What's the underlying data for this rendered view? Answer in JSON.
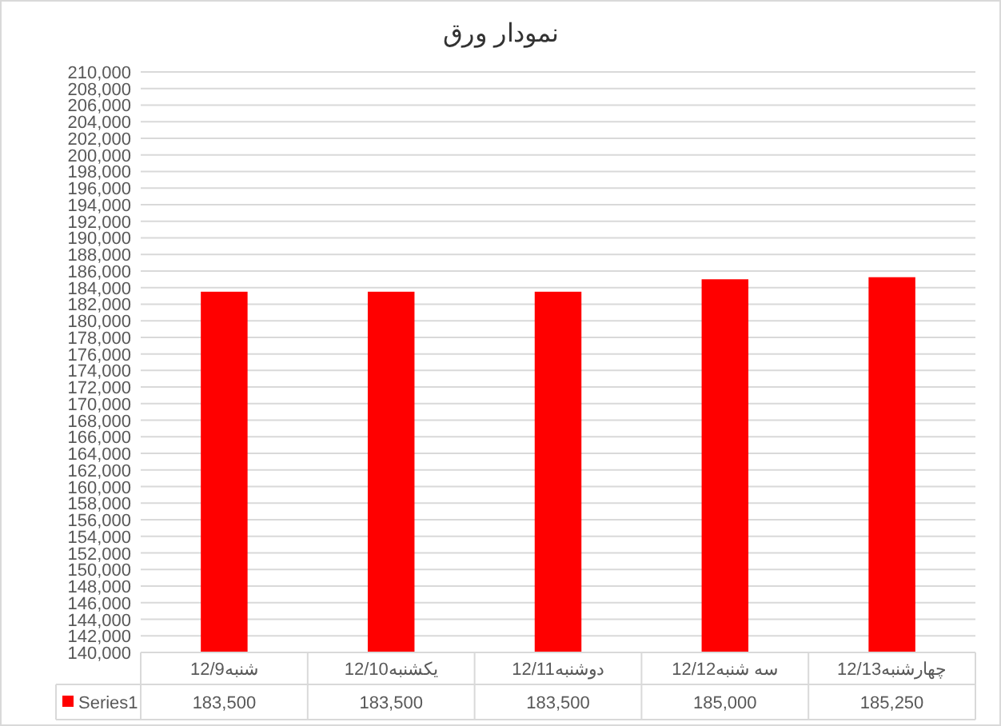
{
  "chart_data": {
    "type": "bar",
    "title": "نمودار ورق",
    "categories": [
      "12/9شنبه",
      "12/10یکشنبه",
      "12/11دوشنبه",
      "12/12سه شنبه",
      "12/13چهارشنبه"
    ],
    "series": [
      {
        "name": "Series1",
        "color": "#ff0000",
        "values": [
          183500,
          183500,
          183500,
          185000,
          185250
        ],
        "value_labels": [
          "183,500",
          "183,500",
          "183,500",
          "185,000",
          "185,250"
        ]
      }
    ],
    "legend": "bottom",
    "grid": "y",
    "ylim": [
      140000,
      210000
    ],
    "yticks": [
      {
        "value": 140000,
        "label": "140,000"
      },
      {
        "value": 142000,
        "label": "142,000"
      },
      {
        "value": 144000,
        "label": "144,000"
      },
      {
        "value": 146000,
        "label": "146,000"
      },
      {
        "value": 148000,
        "label": "148,000"
      },
      {
        "value": 150000,
        "label": "150,000"
      },
      {
        "value": 152000,
        "label": "152,000"
      },
      {
        "value": 154000,
        "label": "154,000"
      },
      {
        "value": 156000,
        "label": "156,000"
      },
      {
        "value": 158000,
        "label": "158,000"
      },
      {
        "value": 160000,
        "label": "160,000"
      },
      {
        "value": 162000,
        "label": "162,000"
      },
      {
        "value": 164000,
        "label": "164,000"
      },
      {
        "value": 166000,
        "label": "166,000"
      },
      {
        "value": 168000,
        "label": "168,000"
      },
      {
        "value": 170000,
        "label": "170,000"
      },
      {
        "value": 172000,
        "label": "172,000"
      },
      {
        "value": 174000,
        "label": "174,000"
      },
      {
        "value": 176000,
        "label": "176,000"
      },
      {
        "value": 178000,
        "label": "178,000"
      },
      {
        "value": 180000,
        "label": "180,000"
      },
      {
        "value": 182000,
        "label": "182,000"
      },
      {
        "value": 184000,
        "label": "184,000"
      },
      {
        "value": 186000,
        "label": "186,000"
      },
      {
        "value": 188000,
        "label": "188,000"
      },
      {
        "value": 190000,
        "label": "190,000"
      },
      {
        "value": 192000,
        "label": "192,000"
      },
      {
        "value": 194000,
        "label": "194,000"
      },
      {
        "value": 196000,
        "label": "196,000"
      },
      {
        "value": 198000,
        "label": "198,000"
      },
      {
        "value": 200000,
        "label": "200,000"
      },
      {
        "value": 202000,
        "label": "202,000"
      },
      {
        "value": 204000,
        "label": "204,000"
      },
      {
        "value": 206000,
        "label": "206,000"
      },
      {
        "value": 208000,
        "label": "208,000"
      },
      {
        "value": 210000,
        "label": "210,000"
      }
    ]
  }
}
